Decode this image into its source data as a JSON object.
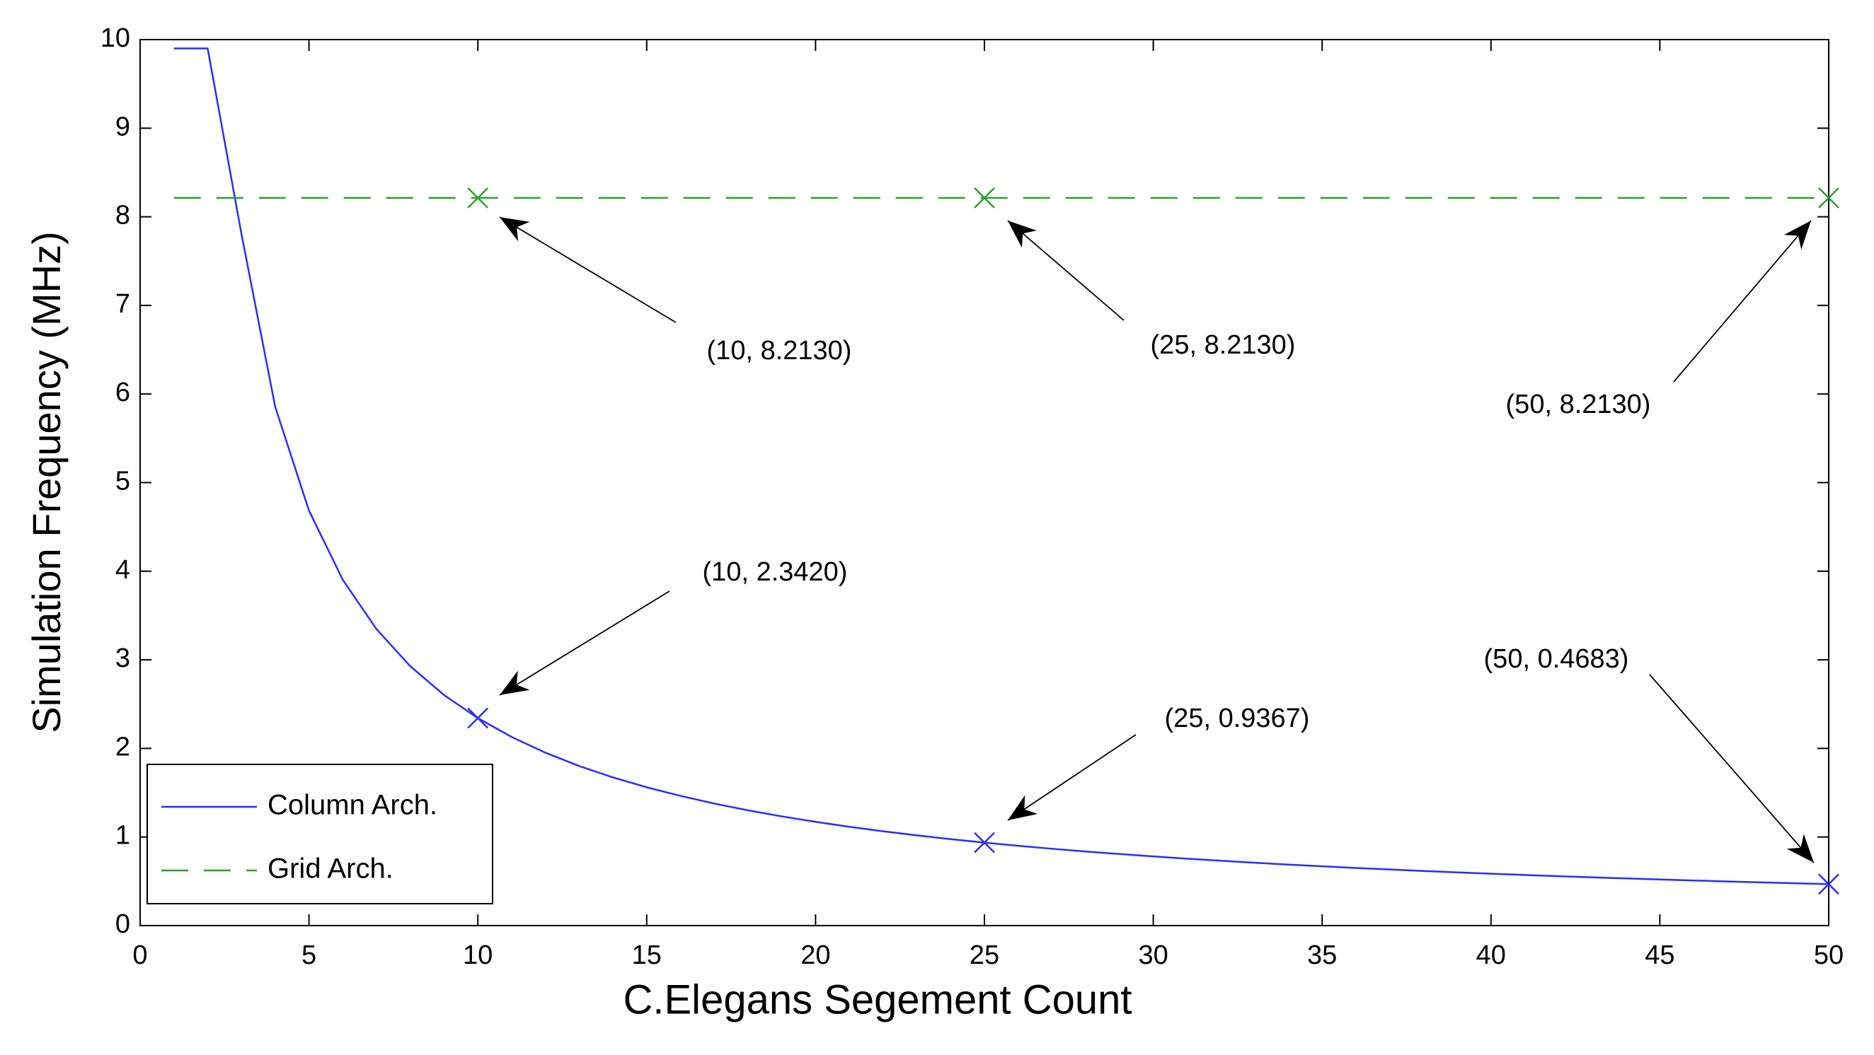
{
  "chart_data": {
    "type": "line",
    "xlabel": "C.Elegans Segement Count",
    "ylabel": "Simulation Frequency (MHz)",
    "x": [
      1,
      2,
      3,
      4,
      5,
      6,
      7,
      8,
      9,
      10,
      11,
      12,
      13,
      14,
      15,
      16,
      17,
      18,
      19,
      20,
      21,
      22,
      23,
      24,
      25,
      26,
      27,
      28,
      29,
      30,
      31,
      32,
      33,
      34,
      35,
      36,
      37,
      38,
      39,
      40,
      41,
      42,
      43,
      44,
      45,
      46,
      47,
      48,
      49,
      50
    ],
    "series": [
      {
        "name": "Column Arch.",
        "color": "#2b2bff",
        "dash": false,
        "marker_x": [
          10,
          25,
          50
        ],
        "values": [
          9.9,
          9.9,
          7.8067,
          5.855,
          4.684,
          3.9033,
          3.3457,
          2.9275,
          2.6022,
          2.342,
          2.1291,
          1.9517,
          1.8015,
          1.6729,
          1.5613,
          1.4638,
          1.3776,
          1.3011,
          1.2326,
          1.171,
          1.1152,
          1.0645,
          1.0183,
          0.9758,
          0.9367,
          0.9008,
          0.8674,
          0.8364,
          0.8076,
          0.7807,
          0.7555,
          0.7319,
          0.7097,
          0.6888,
          0.6691,
          0.6506,
          0.633,
          0.6163,
          0.6005,
          0.5855,
          0.5712,
          0.5576,
          0.5447,
          0.5323,
          0.5204,
          0.5091,
          0.4983,
          0.4879,
          0.478,
          0.4683
        ]
      },
      {
        "name": "Grid Arch.",
        "color": "#2ca02c",
        "dash": true,
        "marker_x": [
          10,
          25,
          50
        ],
        "values": [
          8.213,
          8.213,
          8.213,
          8.213,
          8.213,
          8.213,
          8.213,
          8.213,
          8.213,
          8.213,
          8.213,
          8.213,
          8.213,
          8.213,
          8.213,
          8.213,
          8.213,
          8.213,
          8.213,
          8.213,
          8.213,
          8.213,
          8.213,
          8.213,
          8.213,
          8.213,
          8.213,
          8.213,
          8.213,
          8.213,
          8.213,
          8.213,
          8.213,
          8.213,
          8.213,
          8.213,
          8.213,
          8.213,
          8.213,
          8.213,
          8.213,
          8.213,
          8.213,
          8.213,
          8.213,
          8.213,
          8.213,
          8.213,
          8.213,
          8.213
        ]
      }
    ],
    "annotations": [
      "(10, 8.2130)",
      "(25, 8.2130)",
      "(50, 8.2130)",
      "(10, 2.3420)",
      "(25, 0.9367)",
      "(50, 0.4683)"
    ],
    "xlim": [
      0,
      50
    ],
    "xticks": [
      0,
      5,
      10,
      15,
      20,
      25,
      30,
      35,
      40,
      45,
      50
    ],
    "ylim": [
      0,
      10
    ],
    "yticks": [
      0,
      1,
      2,
      3,
      4,
      5,
      6,
      7,
      8,
      9,
      10
    ],
    "legend": "lower left",
    "grid": false
  }
}
